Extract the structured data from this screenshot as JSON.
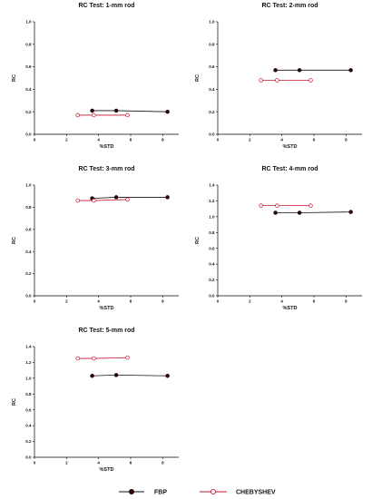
{
  "colors": {
    "fbp_fill": "#3d0000",
    "fbp_line": "#111111",
    "cheb_stroke": "#c8102e",
    "cheb_line": "#c8102e",
    "axis": "#000000"
  },
  "legend": {
    "placement": "bottom",
    "items": [
      {
        "label": "FBP",
        "marker": "filled-circle"
      },
      {
        "label": "CHEBYSHEV",
        "marker": "open-circle"
      }
    ]
  },
  "chart_data": [
    {
      "type": "line",
      "title": "RC Test: 1-mm rod",
      "xlabel": "%STD",
      "ylabel": "RC",
      "xlim": [
        0,
        9
      ],
      "ylim": [
        0,
        1.0
      ],
      "xticks": [
        "0",
        "2",
        "4",
        "6",
        "8"
      ],
      "yticks": [
        "0.0",
        "0.2",
        "0.4",
        "0.6",
        "0.8",
        "1.0"
      ],
      "series": [
        {
          "name": "FBP",
          "x": [
            3.6,
            5.1,
            8.3
          ],
          "y": [
            0.21,
            0.21,
            0.2
          ]
        },
        {
          "name": "CHEBYSHEV",
          "x": [
            2.7,
            3.7,
            5.8
          ],
          "y": [
            0.17,
            0.17,
            0.17
          ]
        }
      ]
    },
    {
      "type": "line",
      "title": "RC Test: 2-mm rod",
      "xlabel": "%STD",
      "ylabel": "RC",
      "xlim": [
        0,
        9
      ],
      "ylim": [
        0,
        1.0
      ],
      "xticks": [
        "0",
        "2",
        "4",
        "6",
        "8"
      ],
      "yticks": [
        "0.0",
        "0.2",
        "0.4",
        "0.6",
        "0.8",
        "1.0"
      ],
      "series": [
        {
          "name": "FBP",
          "x": [
            3.6,
            5.1,
            8.3
          ],
          "y": [
            0.57,
            0.57,
            0.57
          ]
        },
        {
          "name": "CHEBYSHEV",
          "x": [
            2.7,
            3.7,
            5.8
          ],
          "y": [
            0.48,
            0.48,
            0.48
          ]
        }
      ]
    },
    {
      "type": "line",
      "title": "RC Test: 3-mm rod",
      "xlabel": "%STD",
      "ylabel": "RC",
      "xlim": [
        0,
        9
      ],
      "ylim": [
        0,
        1.0
      ],
      "xticks": [
        "0",
        "2",
        "4",
        "6",
        "8"
      ],
      "yticks": [
        "0.0",
        "0.2",
        "0.4",
        "0.6",
        "0.8",
        "1.0"
      ],
      "series": [
        {
          "name": "FBP",
          "x": [
            3.6,
            5.1,
            8.3
          ],
          "y": [
            0.88,
            0.89,
            0.89
          ]
        },
        {
          "name": "CHEBYSHEV",
          "x": [
            2.7,
            3.7,
            5.8
          ],
          "y": [
            0.86,
            0.86,
            0.87
          ]
        }
      ]
    },
    {
      "type": "line",
      "title": "RC Test: 4-mm rod",
      "xlabel": "%STD",
      "ylabel": "RC",
      "xlim": [
        0,
        9
      ],
      "ylim": [
        0,
        1.4
      ],
      "xticks": [
        "0",
        "2",
        "4",
        "6",
        "8"
      ],
      "yticks": [
        "0.0",
        "0.2",
        "0.4",
        "0.6",
        "0.8",
        "1.0",
        "1.2",
        "1.4"
      ],
      "series": [
        {
          "name": "FBP",
          "x": [
            3.6,
            5.1,
            8.3
          ],
          "y": [
            1.05,
            1.05,
            1.06
          ]
        },
        {
          "name": "CHEBYSHEV",
          "x": [
            2.7,
            3.7,
            5.8
          ],
          "y": [
            1.14,
            1.14,
            1.14
          ]
        }
      ]
    },
    {
      "type": "line",
      "title": "RC Test: 5-mm rod",
      "xlabel": "%STD",
      "ylabel": "RC",
      "xlim": [
        0,
        9
      ],
      "ylim": [
        0,
        1.4
      ],
      "xticks": [
        "0",
        "2",
        "4",
        "6",
        "8"
      ],
      "yticks": [
        "0.0",
        "0.2",
        "0.4",
        "0.6",
        "0.8",
        "1.0",
        "1.2",
        "1.4"
      ],
      "series": [
        {
          "name": "FBP",
          "x": [
            3.6,
            5.1,
            8.3
          ],
          "y": [
            1.03,
            1.04,
            1.03
          ]
        },
        {
          "name": "CHEBYSHEV",
          "x": [
            2.7,
            3.7,
            5.8
          ],
          "y": [
            1.25,
            1.25,
            1.26
          ]
        }
      ]
    }
  ]
}
